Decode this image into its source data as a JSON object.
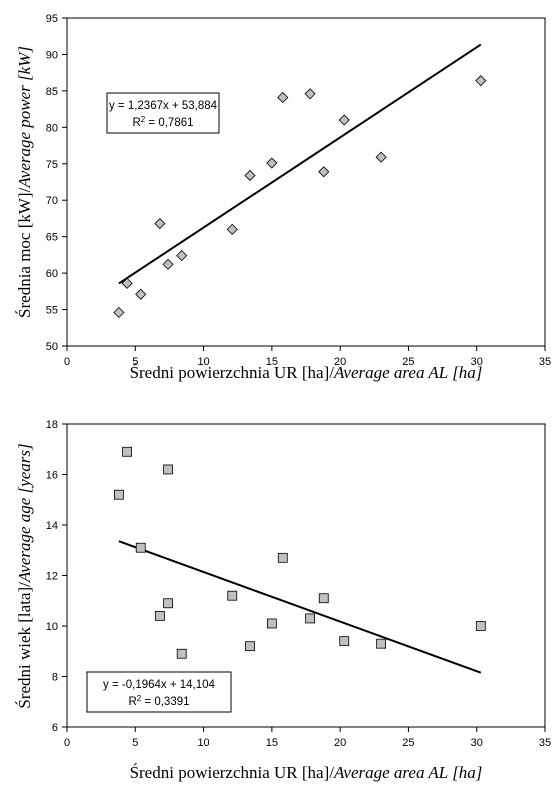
{
  "chart_data": [
    {
      "type": "scatter",
      "marker": "diamond",
      "marker_color": "#c0c0c0",
      "xlabel": "Średni powierzchnia UR [ha]/",
      "xlabel_en": "Average area AL [ha]",
      "ylabel": "Średnia moc [kW]/",
      "ylabel_en": "Average power [kW]",
      "xlim": [
        0,
        35
      ],
      "ylim": [
        50,
        95
      ],
      "xticks": [
        0,
        5,
        10,
        15,
        20,
        25,
        30,
        35
      ],
      "yticks": [
        50,
        55,
        60,
        65,
        70,
        75,
        80,
        85,
        90,
        95
      ],
      "series": [
        {
          "x": [
            3.8,
            4.4,
            5.4,
            6.8,
            7.4,
            8.4,
            12.1,
            13.4,
            15.0,
            15.8,
            17.8,
            18.8,
            20.3,
            23.0,
            30.3
          ],
          "y": [
            54.6,
            58.6,
            57.1,
            66.8,
            61.2,
            62.4,
            66.0,
            73.4,
            75.1,
            84.1,
            84.6,
            73.9,
            81.0,
            75.9,
            86.4
          ]
        }
      ],
      "trendline": {
        "slope": 1.2367,
        "intercept": 53.884,
        "x_range": [
          3.8,
          30.3
        ]
      },
      "equation": "y = 1,2367x + 53,884",
      "r2_label": "R",
      "r2_value": " = 0,7861",
      "legend_position": "top-left"
    },
    {
      "type": "scatter",
      "marker": "square",
      "marker_color": "#c0c0c0",
      "xlabel": "Średni powierzchnia UR [ha]/",
      "xlabel_en": "Average area AL [ha]",
      "ylabel": "Średni wiek [lata]/",
      "ylabel_en": "Average age [years]",
      "xlim": [
        0,
        35
      ],
      "ylim": [
        6,
        18
      ],
      "xticks": [
        0,
        5,
        10,
        15,
        20,
        25,
        30,
        35
      ],
      "yticks": [
        6,
        8,
        10,
        12,
        14,
        16,
        18
      ],
      "series": [
        {
          "x": [
            3.8,
            4.4,
            5.4,
            6.8,
            7.4,
            7.4,
            8.4,
            12.1,
            13.4,
            15.0,
            15.8,
            17.8,
            18.8,
            20.3,
            23.0,
            30.3
          ],
          "y": [
            15.2,
            16.9,
            13.1,
            10.4,
            10.9,
            16.2,
            8.9,
            11.2,
            9.2,
            10.1,
            12.7,
            10.3,
            11.1,
            9.4,
            9.3,
            10.0
          ]
        }
      ],
      "trendline": {
        "slope": -0.1964,
        "intercept": 14.104,
        "x_range": [
          3.8,
          30.3
        ]
      },
      "equation": "y = -0,1964x + 14,104",
      "r2_label": "R",
      "r2_value": " = 0,3391",
      "legend_position": "bottom-left"
    }
  ]
}
